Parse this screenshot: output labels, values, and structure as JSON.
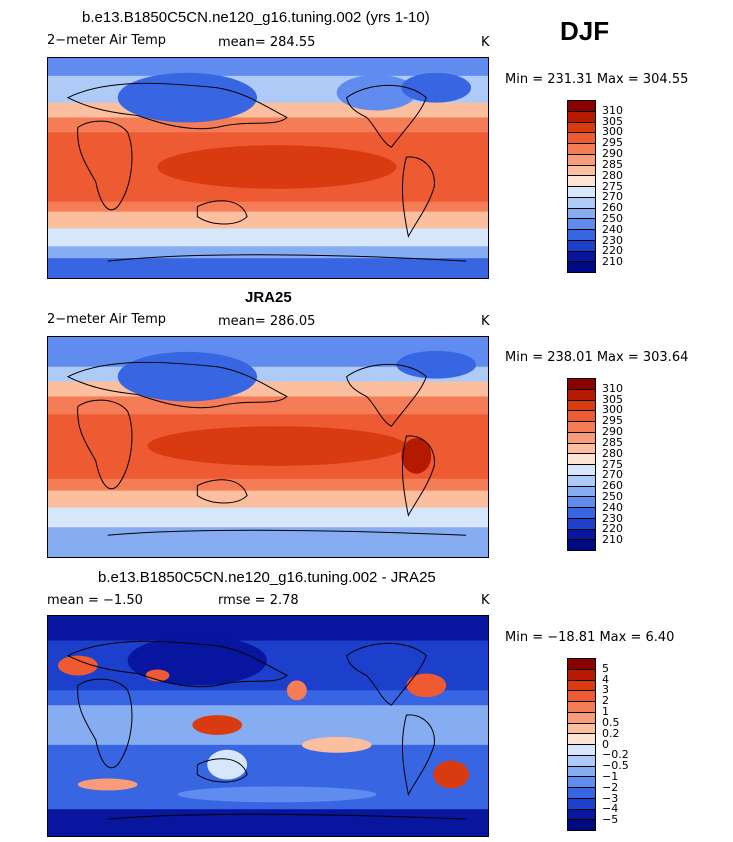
{
  "season": "DJF",
  "panels": [
    {
      "title": "b.e13.B1850C5CN.ne120_g16.tuning.002 (yrs 1-10)",
      "left_label": "2−meter Air Temp",
      "center_label": "mean=  284.55",
      "units": "K",
      "minmax": "Min = 231.31  Max = 304.55",
      "colorbar_labels": [
        "310",
        "305",
        "300",
        "295",
        "290",
        "285",
        "280",
        "275",
        "270",
        "260",
        "250",
        "240",
        "230",
        "220",
        "210"
      ]
    },
    {
      "title": "JRA25",
      "left_label": "2−meter Air Temp",
      "center_label": "mean=  286.05",
      "units": "K",
      "minmax": "Min = 238.01  Max = 303.64",
      "colorbar_labels": [
        "310",
        "305",
        "300",
        "295",
        "290",
        "285",
        "280",
        "275",
        "270",
        "260",
        "250",
        "240",
        "230",
        "220",
        "210"
      ]
    },
    {
      "title": "b.e13.B1850C5CN.ne120_g16.tuning.002 - JRA25",
      "left_label": "mean =    −1.50",
      "center_label": "rmse =     2.78",
      "units": "K",
      "minmax": "Min = −18.81  Max =      6.40",
      "colorbar_labels": [
        "5",
        "4",
        "3",
        "2",
        "1",
        "0.5",
        "0.2",
        "0",
        "−0.2",
        "−0.5",
        "−1",
        "−2",
        "−3",
        "−4",
        "−5"
      ]
    }
  ],
  "colors": {
    "abs_scale": [
      "#8b0000",
      "#b51a00",
      "#d93a10",
      "#ee5a32",
      "#f47c56",
      "#f89c7c",
      "#fbbf9f",
      "#fde3d2",
      "#d6e6fb",
      "#aecbf7",
      "#86acf2",
      "#5f8cee",
      "#3866e3",
      "#1c40cc",
      "#08159e",
      "#000a80"
    ],
    "diff_scale": [
      "#8b0000",
      "#b51a00",
      "#d93a10",
      "#ee5a32",
      "#f47c56",
      "#f89c7c",
      "#fbbf9f",
      "#fde3d2",
      "#d6e6fb",
      "#aecbf7",
      "#86acf2",
      "#5f8cee",
      "#3866e3",
      "#1c40cc",
      "#08159e",
      "#000a80"
    ]
  }
}
